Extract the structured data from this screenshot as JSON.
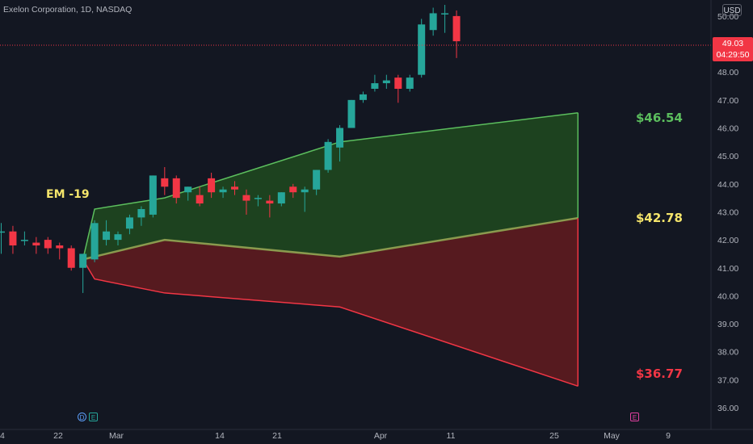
{
  "header": {
    "title": "Exelon Corporation, 1D, NASDAQ"
  },
  "currency": "USD",
  "price_tag": {
    "price": "49.03",
    "countdown": "04:29:50"
  },
  "badges": [
    {
      "letter": "D",
      "kind": "dividend",
      "color": "#5b9cf6"
    },
    {
      "letter": "E",
      "kind": "earnings",
      "color": "#26a69a"
    },
    {
      "letter": "E",
      "kind": "earnings-upcoming",
      "color": "#e040a0"
    }
  ],
  "annotation": {
    "text": "EM -19"
  },
  "colors": {
    "up": "#26a69a",
    "down": "#f23645",
    "upper_band": "#5cbf5e",
    "lower_band": "#f23645",
    "mid_label": "#f5e56b",
    "upper_fill": "#1d4420",
    "lower_fill": "#5a1a20"
  },
  "chart_data": {
    "type": "candlestick",
    "title": "Exelon Corporation, 1D, NASDAQ",
    "y_axis": {
      "ticks": [
        "36.00",
        "37.00",
        "38.00",
        "39.00",
        "40.00",
        "41.00",
        "42.00",
        "43.00",
        "44.00",
        "45.00",
        "46.00",
        "47.00",
        "48.00",
        "49.00",
        "50.00"
      ],
      "range": [
        35.6,
        50.5
      ],
      "position": "right"
    },
    "x_axis": {
      "ticks": [
        "4",
        "22",
        "Mar",
        "14",
        "21",
        "Apr",
        "11",
        "25",
        "May",
        "9"
      ]
    },
    "grid": false,
    "candles": [
      {
        "o": 42.3,
        "h": 42.6,
        "l": 41.5,
        "c": 42.3
      },
      {
        "o": 42.3,
        "h": 42.5,
        "l": 41.5,
        "c": 41.8
      },
      {
        "o": 42.0,
        "h": 42.3,
        "l": 41.8,
        "c": 42.0
      },
      {
        "o": 41.9,
        "h": 42.1,
        "l": 41.5,
        "c": 41.8
      },
      {
        "o": 42.0,
        "h": 42.1,
        "l": 41.5,
        "c": 41.7
      },
      {
        "o": 41.8,
        "h": 41.9,
        "l": 41.3,
        "c": 41.7
      },
      {
        "o": 41.7,
        "h": 41.8,
        "l": 40.9,
        "c": 41.0
      },
      {
        "o": 41.0,
        "h": 41.5,
        "l": 40.1,
        "c": 41.5
      },
      {
        "o": 41.3,
        "h": 42.7,
        "l": 41.2,
        "c": 42.6
      },
      {
        "o": 42.0,
        "h": 42.7,
        "l": 41.8,
        "c": 42.3
      },
      {
        "o": 42.0,
        "h": 42.3,
        "l": 41.8,
        "c": 42.2
      },
      {
        "o": 42.4,
        "h": 42.9,
        "l": 42.2,
        "c": 42.8
      },
      {
        "o": 42.8,
        "h": 43.2,
        "l": 42.5,
        "c": 43.1
      },
      {
        "o": 42.9,
        "h": 44.3,
        "l": 42.8,
        "c": 44.3
      },
      {
        "o": 44.2,
        "h": 44.6,
        "l": 43.6,
        "c": 43.9
      },
      {
        "o": 44.2,
        "h": 44.3,
        "l": 43.3,
        "c": 43.5
      },
      {
        "o": 43.7,
        "h": 43.9,
        "l": 43.4,
        "c": 43.9
      },
      {
        "o": 43.6,
        "h": 43.9,
        "l": 43.2,
        "c": 43.3
      },
      {
        "o": 44.2,
        "h": 44.4,
        "l": 43.5,
        "c": 43.7
      },
      {
        "o": 43.7,
        "h": 43.9,
        "l": 43.5,
        "c": 43.8
      },
      {
        "o": 43.9,
        "h": 44.1,
        "l": 43.6,
        "c": 43.8
      },
      {
        "o": 43.6,
        "h": 43.8,
        "l": 42.9,
        "c": 43.4
      },
      {
        "o": 43.5,
        "h": 43.6,
        "l": 43.2,
        "c": 43.5
      },
      {
        "o": 43.4,
        "h": 43.6,
        "l": 42.8,
        "c": 43.3
      },
      {
        "o": 43.3,
        "h": 43.7,
        "l": 43.2,
        "c": 43.7
      },
      {
        "o": 43.9,
        "h": 44.0,
        "l": 43.5,
        "c": 43.7
      },
      {
        "o": 43.7,
        "h": 43.9,
        "l": 43.0,
        "c": 43.8
      },
      {
        "o": 43.8,
        "h": 44.5,
        "l": 43.6,
        "c": 44.5
      },
      {
        "o": 44.5,
        "h": 45.6,
        "l": 44.4,
        "c": 45.5
      },
      {
        "o": 45.3,
        "h": 46.1,
        "l": 44.8,
        "c": 46.0
      },
      {
        "o": 46.0,
        "h": 47.0,
        "l": 46.0,
        "c": 47.0
      },
      {
        "o": 47.0,
        "h": 47.3,
        "l": 46.9,
        "c": 47.2
      },
      {
        "o": 47.4,
        "h": 47.9,
        "l": 47.3,
        "c": 47.6
      },
      {
        "o": 47.6,
        "h": 47.9,
        "l": 47.4,
        "c": 47.7
      },
      {
        "o": 47.8,
        "h": 47.9,
        "l": 46.9,
        "c": 47.4
      },
      {
        "o": 47.4,
        "h": 47.9,
        "l": 47.3,
        "c": 47.8
      },
      {
        "o": 47.9,
        "h": 49.9,
        "l": 47.8,
        "c": 49.7
      },
      {
        "o": 49.5,
        "h": 50.3,
        "l": 49.3,
        "c": 50.1
      },
      {
        "o": 50.1,
        "h": 50.4,
        "l": 49.4,
        "c": 50.1
      },
      {
        "o": 50.0,
        "h": 50.2,
        "l": 48.5,
        "c": 49.1
      }
    ],
    "expected_move": {
      "label": "EM -19",
      "upper": {
        "points": [
          [
            7,
            41.3
          ],
          [
            8,
            43.1
          ],
          [
            14,
            43.5
          ],
          [
            29,
            45.5
          ],
          [
            49.4,
            46.54
          ]
        ],
        "end_label": "$46.54"
      },
      "middle": {
        "points": [
          [
            7,
            41.3
          ],
          [
            14,
            42.0
          ],
          [
            29,
            41.4
          ],
          [
            49.4,
            42.78
          ]
        ],
        "end_label": "$42.78"
      },
      "lower": {
        "points": [
          [
            7,
            41.3
          ],
          [
            8,
            40.6
          ],
          [
            14,
            40.1
          ],
          [
            29,
            39.6
          ],
          [
            49.4,
            36.77
          ]
        ],
        "end_label": "$36.77"
      }
    }
  }
}
